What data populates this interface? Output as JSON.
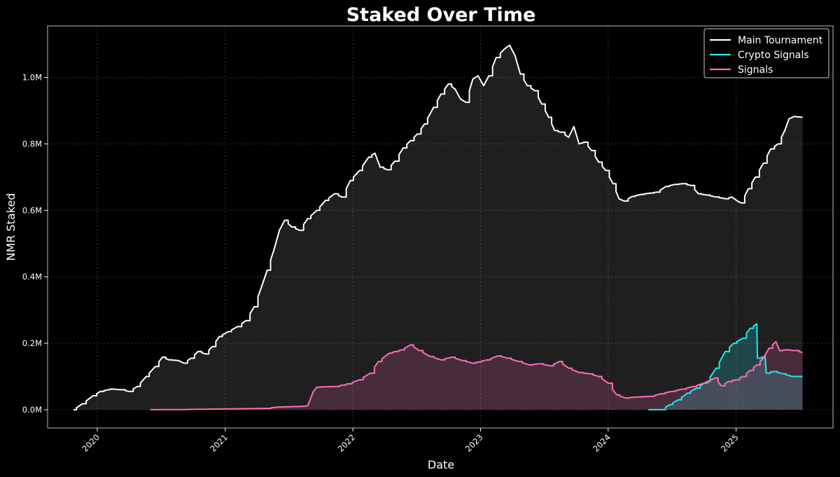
{
  "chart_data": {
    "type": "line",
    "title": "Staked Over Time",
    "xlabel": "Date",
    "ylabel": "NMR Staked",
    "xlim": [
      "2019-08-12",
      "2025-10-05"
    ],
    "ylim": [
      -55000,
      1155000
    ],
    "x_ticks": [
      {
        "date": "2020-01-01",
        "label": "2020"
      },
      {
        "date": "2021-01-01",
        "label": "2021"
      },
      {
        "date": "2022-01-01",
        "label": "2022"
      },
      {
        "date": "2023-01-01",
        "label": "2023"
      },
      {
        "date": "2024-01-01",
        "label": "2024"
      },
      {
        "date": "2025-01-01",
        "label": "2025"
      }
    ],
    "y_ticks": [
      {
        "value": 0,
        "label": "0.0M"
      },
      {
        "value": 200000,
        "label": "0.2M"
      },
      {
        "value": 400000,
        "label": "0.4M"
      },
      {
        "value": 600000,
        "label": "0.6M"
      },
      {
        "value": 800000,
        "label": "0.8M"
      },
      {
        "value": 1000000,
        "label": "1.0M"
      }
    ],
    "grid": true,
    "legend_position": "top-right",
    "background": "#000000",
    "series": [
      {
        "name": "Main Tournament",
        "color": "#ffffff",
        "points": [
          [
            "2019-10-25",
            0
          ],
          [
            "2019-11-20",
            18000
          ],
          [
            "2019-12-20",
            42000
          ],
          [
            "2020-01-10",
            55000
          ],
          [
            "2020-02-10",
            62000
          ],
          [
            "2020-03-10",
            60000
          ],
          [
            "2020-04-01",
            55000
          ],
          [
            "2020-04-25",
            70000
          ],
          [
            "2020-05-20",
            100000
          ],
          [
            "2020-06-15",
            130000
          ],
          [
            "2020-07-05",
            158000
          ],
          [
            "2020-07-25",
            150000
          ],
          [
            "2020-08-20",
            148000
          ],
          [
            "2020-09-05",
            140000
          ],
          [
            "2020-09-25",
            155000
          ],
          [
            "2020-10-15",
            175000
          ],
          [
            "2020-11-05",
            168000
          ],
          [
            "2020-11-25",
            190000
          ],
          [
            "2020-12-15",
            220000
          ],
          [
            "2021-01-10",
            235000
          ],
          [
            "2021-02-05",
            250000
          ],
          [
            "2021-03-01",
            268000
          ],
          [
            "2021-03-25",
            310000
          ],
          [
            "2021-04-15",
            370000
          ],
          [
            "2021-05-01",
            420000
          ],
          [
            "2021-05-20",
            480000
          ],
          [
            "2021-06-05",
            540000
          ],
          [
            "2021-06-20",
            570000
          ],
          [
            "2021-07-10",
            550000
          ],
          [
            "2021-08-01",
            540000
          ],
          [
            "2021-08-25",
            575000
          ],
          [
            "2021-09-20",
            600000
          ],
          [
            "2021-10-15",
            630000
          ],
          [
            "2021-11-10",
            650000
          ],
          [
            "2021-12-01",
            640000
          ],
          [
            "2021-12-25",
            690000
          ],
          [
            "2022-01-20",
            720000
          ],
          [
            "2022-02-15",
            760000
          ],
          [
            "2022-03-05",
            772000
          ],
          [
            "2022-03-20",
            730000
          ],
          [
            "2022-04-10",
            722000
          ],
          [
            "2022-05-01",
            748000
          ],
          [
            "2022-05-25",
            788000
          ],
          [
            "2022-06-15",
            810000
          ],
          [
            "2022-07-05",
            830000
          ],
          [
            "2022-07-25",
            860000
          ],
          [
            "2022-08-20",
            910000
          ],
          [
            "2022-09-10",
            950000
          ],
          [
            "2022-10-01",
            980000
          ],
          [
            "2022-10-20",
            965000
          ],
          [
            "2022-11-05",
            935000
          ],
          [
            "2022-11-20",
            925000
          ],
          [
            "2022-12-10",
            995000
          ],
          [
            "2022-12-25",
            1005000
          ],
          [
            "2023-01-10",
            975000
          ],
          [
            "2023-01-25",
            1005000
          ],
          [
            "2023-02-15",
            1060000
          ],
          [
            "2023-03-10",
            1085000
          ],
          [
            "2023-03-25",
            1097000
          ],
          [
            "2023-04-10",
            1065000
          ],
          [
            "2023-04-25",
            1010000
          ],
          [
            "2023-05-15",
            975000
          ],
          [
            "2023-06-05",
            960000
          ],
          [
            "2023-06-25",
            920000
          ],
          [
            "2023-07-15",
            880000
          ],
          [
            "2023-08-01",
            840000
          ],
          [
            "2023-08-20",
            835000
          ],
          [
            "2023-09-10",
            820000
          ],
          [
            "2023-09-25",
            852000
          ],
          [
            "2023-10-10",
            800000
          ],
          [
            "2023-10-25",
            805000
          ],
          [
            "2023-11-15",
            780000
          ],
          [
            "2023-12-05",
            745000
          ],
          [
            "2023-12-25",
            720000
          ],
          [
            "2024-01-15",
            680000
          ],
          [
            "2024-02-01",
            635000
          ],
          [
            "2024-02-15",
            628000
          ],
          [
            "2024-03-10",
            642000
          ],
          [
            "2024-04-05",
            648000
          ],
          [
            "2024-05-01",
            652000
          ],
          [
            "2024-05-20",
            655000
          ],
          [
            "2024-06-15",
            672000
          ],
          [
            "2024-07-10",
            678000
          ],
          [
            "2024-08-01",
            680000
          ],
          [
            "2024-08-25",
            675000
          ],
          [
            "2024-09-15",
            650000
          ],
          [
            "2024-10-10",
            646000
          ],
          [
            "2024-11-05",
            640000
          ],
          [
            "2024-12-01",
            635000
          ],
          [
            "2024-12-20",
            640000
          ],
          [
            "2025-01-05",
            628000
          ],
          [
            "2025-01-15",
            622000
          ],
          [
            "2025-02-05",
            665000
          ],
          [
            "2025-02-25",
            700000
          ],
          [
            "2025-03-20",
            742000
          ],
          [
            "2025-04-10",
            785000
          ],
          [
            "2025-05-01",
            800000
          ],
          [
            "2025-05-20",
            840000
          ],
          [
            "2025-06-01",
            875000
          ],
          [
            "2025-06-15",
            882000
          ],
          [
            "2025-07-10",
            880000
          ]
        ]
      },
      {
        "name": "Crypto Signals",
        "color": "#22e8f0",
        "points": [
          [
            "2024-04-25",
            0
          ],
          [
            "2024-06-01",
            0
          ],
          [
            "2024-06-25",
            15000
          ],
          [
            "2024-07-20",
            30000
          ],
          [
            "2024-08-15",
            50000
          ],
          [
            "2024-09-10",
            65000
          ],
          [
            "2024-10-10",
            85000
          ],
          [
            "2024-11-05",
            125000
          ],
          [
            "2024-12-01",
            175000
          ],
          [
            "2024-12-25",
            200000
          ],
          [
            "2025-01-20",
            215000
          ],
          [
            "2025-02-10",
            245000
          ],
          [
            "2025-03-01",
            258000
          ],
          [
            "2025-03-03",
            155000
          ],
          [
            "2025-03-25",
            160000
          ],
          [
            "2025-03-28",
            110000
          ],
          [
            "2025-04-20",
            115000
          ],
          [
            "2025-05-15",
            108000
          ],
          [
            "2025-06-10",
            100000
          ],
          [
            "2025-07-10",
            100000
          ]
        ]
      },
      {
        "name": "Signals",
        "color": "#ff6eb4",
        "points": [
          [
            "2020-06-01",
            0
          ],
          [
            "2020-09-01",
            500
          ],
          [
            "2020-12-01",
            2000
          ],
          [
            "2021-03-01",
            3000
          ],
          [
            "2021-05-01",
            4000
          ],
          [
            "2021-06-01",
            8000
          ],
          [
            "2021-08-10",
            10000
          ],
          [
            "2021-08-25",
            12000
          ],
          [
            "2021-09-10",
            55000
          ],
          [
            "2021-09-20",
            68000
          ],
          [
            "2021-11-15",
            70000
          ],
          [
            "2021-12-20",
            78000
          ],
          [
            "2022-01-20",
            90000
          ],
          [
            "2022-02-20",
            110000
          ],
          [
            "2022-03-15",
            145000
          ],
          [
            "2022-04-15",
            170000
          ],
          [
            "2022-05-20",
            180000
          ],
          [
            "2022-06-15",
            195000
          ],
          [
            "2022-07-10",
            178000
          ],
          [
            "2022-08-10",
            160000
          ],
          [
            "2022-09-10",
            150000
          ],
          [
            "2022-10-10",
            158000
          ],
          [
            "2022-11-10",
            148000
          ],
          [
            "2022-12-10",
            140000
          ],
          [
            "2023-01-20",
            150000
          ],
          [
            "2023-02-20",
            162000
          ],
          [
            "2023-03-20",
            155000
          ],
          [
            "2023-04-20",
            145000
          ],
          [
            "2023-05-20",
            135000
          ],
          [
            "2023-06-20",
            138000
          ],
          [
            "2023-07-20",
            132000
          ],
          [
            "2023-08-15",
            145000
          ],
          [
            "2023-09-10",
            125000
          ],
          [
            "2023-10-10",
            112000
          ],
          [
            "2023-11-10",
            108000
          ],
          [
            "2023-12-05",
            100000
          ],
          [
            "2024-01-01",
            80000
          ],
          [
            "2024-01-25",
            45000
          ],
          [
            "2024-02-20",
            35000
          ],
          [
            "2024-03-20",
            38000
          ],
          [
            "2024-05-01",
            40000
          ],
          [
            "2024-06-01",
            48000
          ],
          [
            "2024-07-01",
            55000
          ],
          [
            "2024-08-01",
            62000
          ],
          [
            "2024-09-01",
            70000
          ],
          [
            "2024-10-01",
            80000
          ],
          [
            "2024-11-01",
            95000
          ],
          [
            "2024-11-20",
            72000
          ],
          [
            "2024-12-10",
            85000
          ],
          [
            "2025-01-01",
            90000
          ],
          [
            "2025-01-20",
            100000
          ],
          [
            "2025-02-10",
            118000
          ],
          [
            "2025-03-01",
            135000
          ],
          [
            "2025-03-20",
            155000
          ],
          [
            "2025-04-05",
            185000
          ],
          [
            "2025-04-25",
            205000
          ],
          [
            "2025-05-05",
            178000
          ],
          [
            "2025-05-25",
            180000
          ],
          [
            "2025-06-20",
            178000
          ],
          [
            "2025-07-10",
            172000
          ]
        ]
      }
    ]
  }
}
